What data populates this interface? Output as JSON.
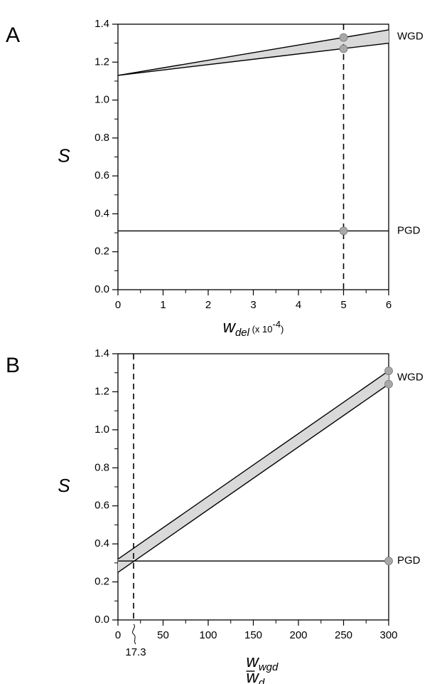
{
  "chart_data": [
    {
      "type": "line",
      "panel_label": "A",
      "xlabel": {
        "symbol": "w",
        "subscript": "del",
        "unit": " (x 10",
        "exponent": "-4",
        "unit_close": ")"
      },
      "ylabel": "S",
      "xlim": [
        0,
        6
      ],
      "ylim": [
        0,
        1.4
      ],
      "x_ticks": [
        "0",
        "1",
        "2",
        "3",
        "4",
        "5",
        "6"
      ],
      "y_ticks": [
        "0.0",
        "0.2",
        "0.4",
        "0.6",
        "0.8",
        "1.0",
        "1.2",
        "1.4"
      ],
      "series": [
        {
          "name": "WGD",
          "band": true,
          "upper": [
            [
              0,
              1.13
            ],
            [
              6,
              1.37
            ]
          ],
          "lower": [
            [
              0,
              1.13
            ],
            [
              6,
              1.3
            ]
          ]
        },
        {
          "name": "PGD",
          "band": false,
          "points": [
            [
              0,
              0.31
            ],
            [
              6,
              0.31
            ]
          ]
        }
      ],
      "reference_line_x": 5,
      "reference_label": "",
      "markers": [
        [
          5,
          1.33
        ],
        [
          5,
          1.27
        ],
        [
          5,
          0.31
        ]
      ],
      "colors": {
        "band_fill": "#d9d9d9",
        "marker_fill": "#a8a8a8",
        "line": "#000000"
      }
    },
    {
      "type": "line",
      "panel_label": "B",
      "xlabel": {
        "numerator": "w",
        "numerator_subscript": "wgd",
        "denominator": "w",
        "denominator_subscript": "d"
      },
      "ylabel": "S",
      "xlim": [
        0,
        300
      ],
      "ylim": [
        0,
        1.4
      ],
      "x_ticks": [
        "0",
        "50",
        "100",
        "150",
        "200",
        "250",
        "300"
      ],
      "y_ticks": [
        "0.0",
        "0.2",
        "0.4",
        "0.6",
        "0.8",
        "1.0",
        "1.2",
        "1.4"
      ],
      "series": [
        {
          "name": "WGD",
          "band": true,
          "upper": [
            [
              0,
              0.32
            ],
            [
              300,
              1.31
            ]
          ],
          "lower": [
            [
              0,
              0.25
            ],
            [
              300,
              1.24
            ]
          ]
        },
        {
          "name": "PGD",
          "band": false,
          "points": [
            [
              0,
              0.31
            ],
            [
              300,
              0.31
            ]
          ]
        }
      ],
      "reference_line_x": 17.3,
      "reference_label": "17.3",
      "markers": [
        [
          300,
          1.31
        ],
        [
          300,
          1.24
        ],
        [
          300,
          0.31
        ]
      ],
      "colors": {
        "band_fill": "#d9d9d9",
        "marker_fill": "#a8a8a8",
        "line": "#000000"
      }
    }
  ]
}
